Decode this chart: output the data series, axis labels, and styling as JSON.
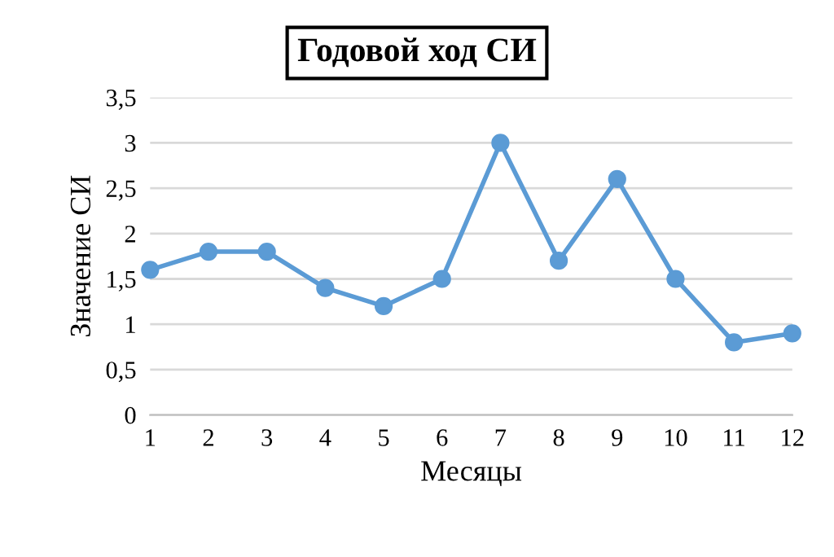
{
  "chart_data": {
    "type": "line",
    "title": "Годовой ход СИ",
    "xlabel": "Месяцы",
    "ylabel": "Значение СИ",
    "categories": [
      "1",
      "2",
      "3",
      "4",
      "5",
      "6",
      "7",
      "8",
      "9",
      "10",
      "11",
      "12"
    ],
    "series": [
      {
        "color": "#5b9bd5",
        "values": [
          1.6,
          1.8,
          1.8,
          1.4,
          1.2,
          1.5,
          3.0,
          1.7,
          2.6,
          1.5,
          0.8,
          0.9
        ]
      }
    ],
    "ylim": [
      0,
      3.5
    ],
    "yticks": [
      0,
      {
        "value": 0.5,
        "label": "0,5"
      },
      1,
      {
        "value": 1.5,
        "label": "1,5"
      },
      2,
      {
        "value": 2.5,
        "label": "2,5"
      },
      3,
      {
        "value": 3.5,
        "label": "3,5"
      }
    ],
    "grid": "y",
    "marker": "circle",
    "line_style": "solid",
    "legend": false
  }
}
